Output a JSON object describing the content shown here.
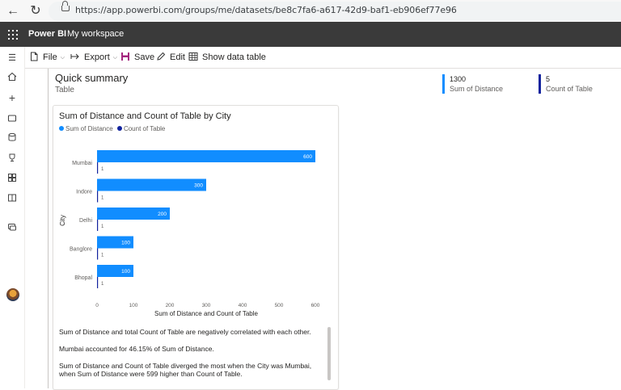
{
  "browser": {
    "url": "https://app.powerbi.com/groups/me/datasets/be8c7fa6-a617-42d9-baf1-eb906ef77e96"
  },
  "header": {
    "app_name": "Power BI",
    "workspace": "My workspace"
  },
  "command_bar": {
    "file": "File",
    "export": "Export",
    "save": "Save",
    "edit": "Edit",
    "show_data_table": "Show data table"
  },
  "summary": {
    "title": "Quick summary",
    "subtitle": "Table",
    "kpis": [
      {
        "value": "1300",
        "label": "Sum of Distance",
        "color": "#118dff"
      },
      {
        "value": "5",
        "label": "Count of Table",
        "color": "#12239e"
      }
    ]
  },
  "visual": {
    "title": "Sum of Distance and Count of Table by City",
    "legend": [
      {
        "label": "Sum of Distance",
        "color": "#118dff"
      },
      {
        "label": "Count of Table",
        "color": "#12239e"
      }
    ],
    "narrative": [
      "Sum of Distance and total Count of Table are negatively correlated with each other.",
      "Mumbai accounted for 46.15% of Sum of Distance.",
      "Sum of Distance and Count of Table diverged the most when the City was Mumbai, when Sum of Distance were 599 higher than Count of Table."
    ]
  },
  "chart_data": {
    "type": "bar",
    "orientation": "horizontal",
    "title": "Sum of Distance and Count of Table by City",
    "xlabel": "Sum of Distance and Count of Table",
    "ylabel": "City",
    "categories": [
      "Mumbai",
      "Indore",
      "Delhi",
      "Banglore",
      "Bhopal"
    ],
    "series": [
      {
        "name": "Sum of Distance",
        "values": [
          600,
          300,
          200,
          100,
          100
        ],
        "color": "#118dff"
      },
      {
        "name": "Count of Table",
        "values": [
          1,
          1,
          1,
          1,
          1
        ],
        "color": "#12239e"
      }
    ],
    "xticks": [
      0,
      100,
      200,
      300,
      400,
      500,
      600
    ],
    "xlim": [
      0,
      600
    ],
    "grid": false,
    "legend_position": "top-left"
  }
}
